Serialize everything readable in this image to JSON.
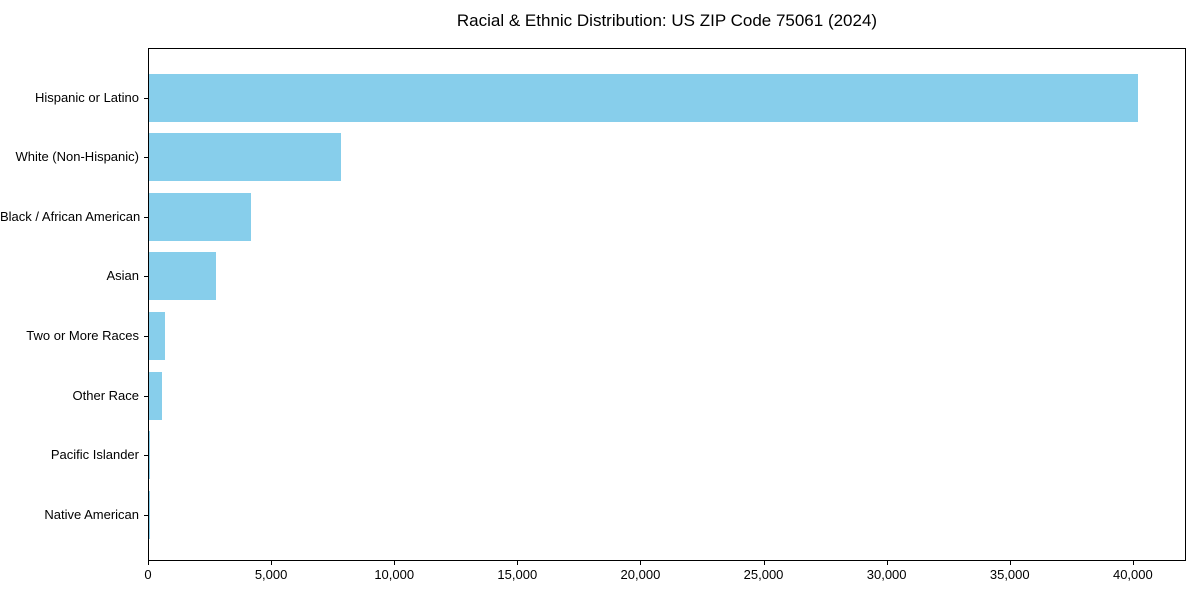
{
  "title": "Racial & Ethnic Distribution: US ZIP Code 75061 (2024)",
  "colors": {
    "bar": "#87CEEB",
    "axis": "#000000",
    "background": "#FFFFFF",
    "text": "#000000"
  },
  "chart_data": {
    "type": "bar",
    "orientation": "horizontal",
    "title": "Racial & Ethnic Distribution: US ZIP Code 75061 (2024)",
    "xlabel": "",
    "ylabel": "",
    "categories": [
      "Hispanic or Latino",
      "White (Non-Hispanic)",
      "Black / African American",
      "Asian",
      "Two or More Races",
      "Other Race",
      "Pacific Islander",
      "Native American"
    ],
    "values": [
      40150,
      7780,
      4160,
      2740,
      630,
      510,
      30,
      15
    ],
    "xlim": [
      0,
      42158
    ],
    "xticks": [
      0,
      5000,
      10000,
      15000,
      20000,
      25000,
      30000,
      35000,
      40000
    ],
    "xtick_labels": [
      "0",
      "5,000",
      "10,000",
      "15,000",
      "20,000",
      "25,000",
      "30,000",
      "35,000",
      "40,000"
    ],
    "bar_color": "#87CEEB",
    "grid": false,
    "legend": false
  }
}
